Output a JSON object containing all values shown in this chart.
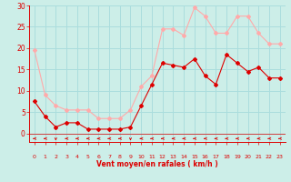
{
  "x": [
    0,
    1,
    2,
    3,
    4,
    5,
    6,
    7,
    8,
    9,
    10,
    11,
    12,
    13,
    14,
    15,
    16,
    17,
    18,
    19,
    20,
    21,
    22,
    23
  ],
  "wind_mean": [
    7.5,
    4.0,
    1.5,
    2.5,
    2.5,
    1.0,
    1.0,
    1.0,
    1.0,
    1.5,
    6.5,
    11.5,
    16.5,
    16.0,
    15.5,
    17.5,
    13.5,
    11.5,
    18.5,
    16.5,
    14.5,
    15.5,
    13.0,
    13.0
  ],
  "wind_gust": [
    19.5,
    9.0,
    6.5,
    5.5,
    5.5,
    5.5,
    3.5,
    3.5,
    3.5,
    5.5,
    11.0,
    13.5,
    24.5,
    24.5,
    23.0,
    29.5,
    27.5,
    23.5,
    23.5,
    27.5,
    27.5,
    23.5,
    21.0,
    21.0
  ],
  "ylim": [
    -2,
    30
  ],
  "yticks": [
    0,
    5,
    10,
    15,
    20,
    25,
    30
  ],
  "xlabel": "Vent moyen/en rafales ( km/h )",
  "background_color": "#cceee8",
  "grid_color": "#aadddd",
  "line_mean_color": "#dd0000",
  "line_gust_color": "#ffaaaa",
  "arrow_color": "#dd0000",
  "arrow_dirs": [
    "l",
    "l",
    "d",
    "l",
    "l",
    "l",
    "l",
    "l",
    "l",
    "d",
    "l",
    "l",
    "l",
    "l",
    "l",
    "l",
    "l",
    "l",
    "l",
    "l",
    "l",
    "l",
    "l",
    "l"
  ]
}
